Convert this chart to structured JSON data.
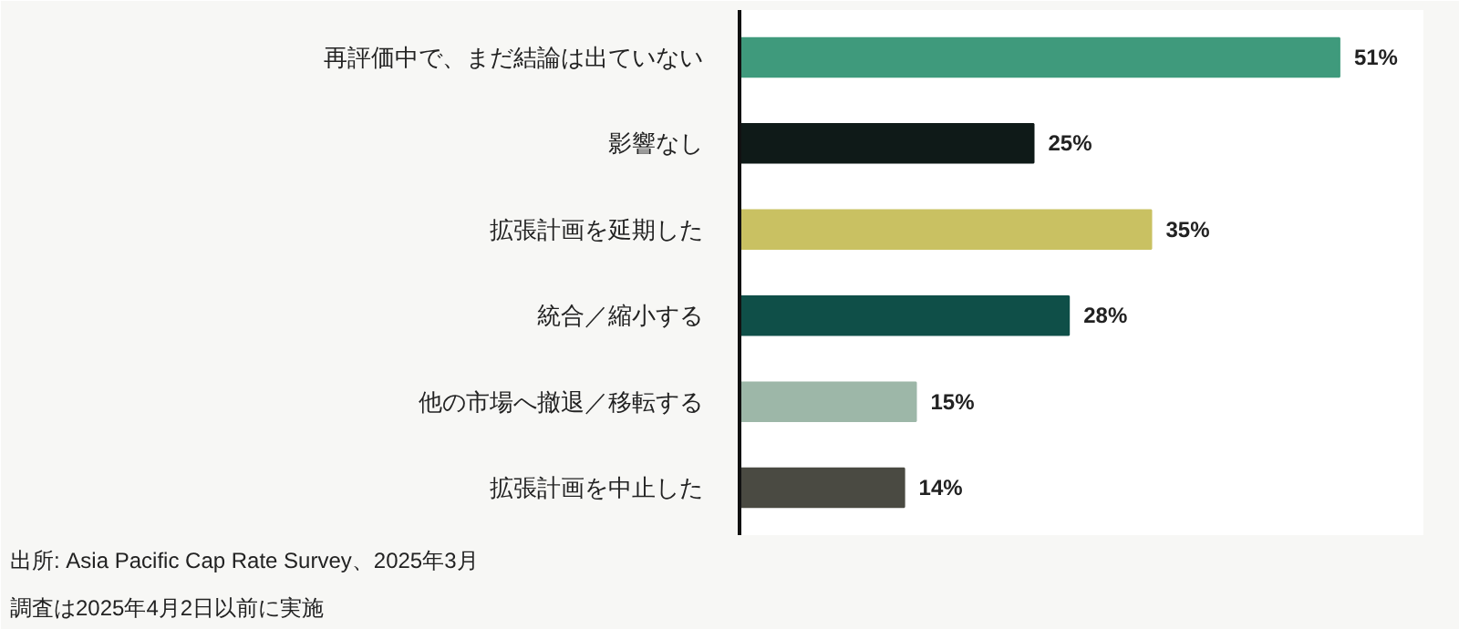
{
  "chart_data": {
    "type": "bar",
    "orientation": "horizontal",
    "categories": [
      "再評価中で、まだ結論は出ていない",
      "影響なし",
      "拡張計画を延期した",
      "統合／縮小する",
      "他の市場へ撤退／移転する",
      "拡張計画を中止した"
    ],
    "values": [
      51,
      25,
      35,
      28,
      15,
      14
    ],
    "value_labels": [
      "51%",
      "25%",
      "35%",
      "28%",
      "15%",
      "14%"
    ],
    "colors": [
      "#3f9a7c",
      "#0f1a18",
      "#c9c162",
      "#0f4f48",
      "#9db7a8",
      "#4a4a42"
    ],
    "grid": false,
    "annotations": [
      "出所: Asia Pacific Cap Rate Survey、2025年3月",
      "調査は2025年4月2日以前に実施"
    ]
  }
}
